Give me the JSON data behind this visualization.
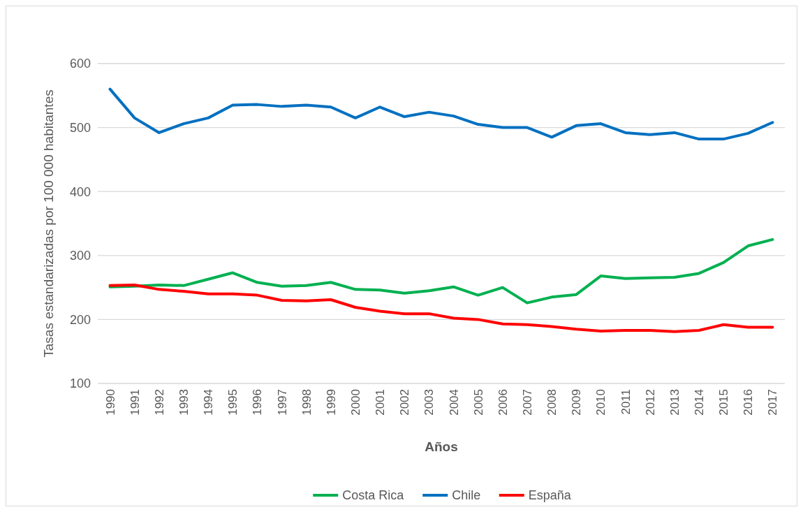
{
  "chart_data": {
    "type": "line",
    "xlabel": "Años",
    "ylabel": "Tasas estandarizadas por 100 000 habitantes",
    "categories": [
      "1990",
      "1991",
      "1992",
      "1993",
      "1994",
      "1995",
      "1996",
      "1997",
      "1998",
      "1999",
      "2000",
      "2001",
      "2002",
      "2003",
      "2004",
      "2005",
      "2006",
      "2007",
      "2008",
      "2009",
      "2010",
      "2011",
      "2012",
      "2013",
      "2014",
      "2015",
      "2016",
      "2017"
    ],
    "series": [
      {
        "name": "Costa Rica",
        "color": "#00b050",
        "values": [
          251,
          252,
          254,
          253,
          263,
          273,
          258,
          252,
          253,
          258,
          247,
          246,
          241,
          245,
          251,
          238,
          250,
          226,
          235,
          239,
          268,
          264,
          265,
          266,
          272,
          289,
          315,
          325
        ]
      },
      {
        "name": "Chile",
        "color": "#0070c0",
        "values": [
          560,
          515,
          492,
          506,
          515,
          535,
          536,
          533,
          535,
          532,
          515,
          532,
          517,
          524,
          518,
          505,
          500,
          500,
          485,
          503,
          506,
          492,
          489,
          492,
          482,
          482,
          491,
          508
        ]
      },
      {
        "name": "España",
        "color": "#ff0000",
        "values": [
          253,
          254,
          247,
          244,
          240,
          240,
          238,
          230,
          229,
          231,
          219,
          213,
          209,
          209,
          202,
          200,
          193,
          192,
          189,
          185,
          182,
          183,
          183,
          181,
          183,
          192,
          188,
          188
        ]
      }
    ],
    "ylim": [
      100,
      600
    ],
    "yticks": [
      100,
      200,
      300,
      400,
      500,
      600
    ],
    "grid": "y",
    "legend": "bottom",
    "marker": "none",
    "line_style": "solid"
  }
}
